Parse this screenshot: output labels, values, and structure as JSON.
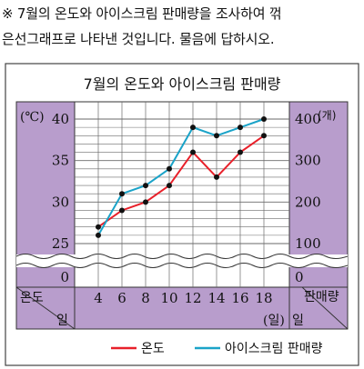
{
  "instructions": {
    "line1": "※ 7월의 온도와 아이스크림 판매량을 조사하여 꺾",
    "line2": "은선그래프로 나타낸 것입니다. 물음에 답하시오."
  },
  "chart_data": {
    "type": "line",
    "title": "7월의 온도와 아이스크림 판매량",
    "x": [
      4,
      6,
      8,
      10,
      12,
      14,
      16,
      18
    ],
    "x_unit": "(일)",
    "left_axis": {
      "unit": "(℃)",
      "ticks": [
        0,
        25,
        30,
        35,
        40
      ],
      "break": true,
      "range": [
        25,
        40
      ]
    },
    "right_axis": {
      "unit": "(개)",
      "ticks": [
        0,
        100,
        200,
        300,
        400
      ],
      "break": true,
      "range": [
        100,
        400
      ]
    },
    "row_header": {
      "top": "온도",
      "bottom": "일"
    },
    "right_row_header": {
      "top": "판매량",
      "bottom": "일"
    },
    "series": [
      {
        "name": "온도",
        "axis": "left",
        "color": "#e8202a",
        "values": [
          27,
          29,
          30,
          32,
          36,
          33,
          36,
          38
        ]
      },
      {
        "name": "아이스크림 판매량",
        "axis": "right",
        "color": "#1aa3c8",
        "values": [
          120,
          220,
          240,
          280,
          380,
          360,
          380,
          400
        ]
      }
    ],
    "grid": true,
    "legend_position": "bottom"
  },
  "colors": {
    "panel": "#b89dcc",
    "plot_bg": "#ffffff",
    "grid": "#6a6a6a",
    "frame": "#333333",
    "points": "#111111"
  }
}
